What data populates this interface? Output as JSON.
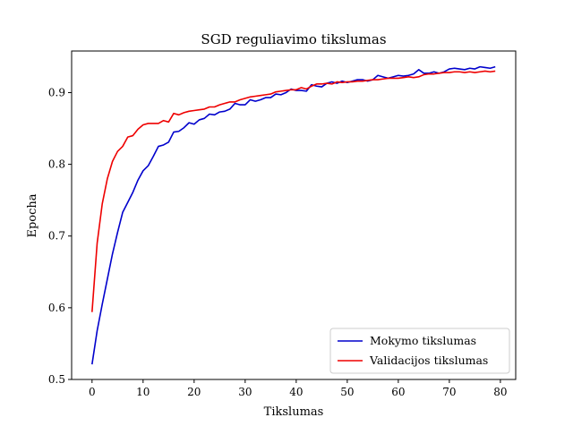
{
  "chart_data": {
    "type": "line",
    "title": "SGD reguliavimo tikslumas",
    "xlabel": "Tikslumas",
    "ylabel": "Epocha",
    "xlim": [
      -4,
      83
    ],
    "ylim": [
      0.5,
      0.958
    ],
    "xticks": [
      0,
      10,
      20,
      30,
      40,
      50,
      60,
      70,
      80
    ],
    "yticks": [
      0.5,
      0.6,
      0.7,
      0.8,
      0.9
    ],
    "grid": false,
    "legend_position": "lower-right",
    "series": [
      {
        "name": "Mokymo tikslumas",
        "color": "#0000cc",
        "x": [
          0,
          1,
          2,
          3,
          4,
          5,
          6,
          7,
          8,
          9,
          10,
          11,
          12,
          13,
          14,
          15,
          16,
          17,
          18,
          19,
          20,
          21,
          22,
          23,
          24,
          25,
          26,
          27,
          28,
          29,
          30,
          31,
          32,
          33,
          34,
          35,
          36,
          37,
          38,
          39,
          40,
          41,
          42,
          43,
          44,
          45,
          46,
          47,
          48,
          49,
          50,
          51,
          52,
          53,
          54,
          55,
          56,
          57,
          58,
          59,
          60,
          61,
          62,
          63,
          64,
          65,
          66,
          67,
          68,
          69,
          70,
          71,
          72,
          73,
          74,
          75,
          76,
          77,
          78,
          79
        ],
        "values": [
          0.521,
          0.568,
          0.605,
          0.64,
          0.675,
          0.705,
          0.733,
          0.747,
          0.761,
          0.778,
          0.791,
          0.798,
          0.811,
          0.825,
          0.827,
          0.831,
          0.845,
          0.846,
          0.851,
          0.858,
          0.856,
          0.862,
          0.864,
          0.87,
          0.869,
          0.873,
          0.874,
          0.877,
          0.885,
          0.883,
          0.883,
          0.89,
          0.888,
          0.89,
          0.893,
          0.893,
          0.898,
          0.897,
          0.9,
          0.905,
          0.903,
          0.903,
          0.902,
          0.911,
          0.909,
          0.908,
          0.913,
          0.915,
          0.913,
          0.916,
          0.914,
          0.916,
          0.918,
          0.918,
          0.916,
          0.918,
          0.924,
          0.922,
          0.92,
          0.922,
          0.924,
          0.923,
          0.924,
          0.926,
          0.932,
          0.927,
          0.927,
          0.929,
          0.927,
          0.929,
          0.933,
          0.934,
          0.933,
          0.932,
          0.934,
          0.933,
          0.936,
          0.935,
          0.934,
          0.936
        ]
      },
      {
        "name": "Validacijos tikslumas",
        "color": "#ee0000",
        "x": [
          0,
          1,
          2,
          3,
          4,
          5,
          6,
          7,
          8,
          9,
          10,
          11,
          12,
          13,
          14,
          15,
          16,
          17,
          18,
          19,
          20,
          21,
          22,
          23,
          24,
          25,
          26,
          27,
          28,
          29,
          30,
          31,
          32,
          33,
          34,
          35,
          36,
          37,
          38,
          39,
          40,
          41,
          42,
          43,
          44,
          45,
          46,
          47,
          48,
          49,
          50,
          51,
          52,
          53,
          54,
          55,
          56,
          57,
          58,
          59,
          60,
          61,
          62,
          63,
          64,
          65,
          66,
          67,
          68,
          69,
          70,
          71,
          72,
          73,
          74,
          75,
          76,
          77,
          78,
          79
        ],
        "values": [
          0.594,
          0.69,
          0.745,
          0.78,
          0.804,
          0.818,
          0.825,
          0.838,
          0.84,
          0.849,
          0.855,
          0.857,
          0.857,
          0.857,
          0.861,
          0.859,
          0.871,
          0.869,
          0.872,
          0.874,
          0.875,
          0.876,
          0.877,
          0.88,
          0.88,
          0.883,
          0.885,
          0.887,
          0.887,
          0.89,
          0.892,
          0.894,
          0.895,
          0.896,
          0.897,
          0.898,
          0.901,
          0.902,
          0.903,
          0.904,
          0.904,
          0.907,
          0.905,
          0.909,
          0.912,
          0.912,
          0.913,
          0.912,
          0.915,
          0.914,
          0.915,
          0.915,
          0.916,
          0.916,
          0.917,
          0.918,
          0.918,
          0.919,
          0.92,
          0.92,
          0.92,
          0.921,
          0.922,
          0.921,
          0.922,
          0.925,
          0.926,
          0.926,
          0.927,
          0.928,
          0.928,
          0.929,
          0.929,
          0.928,
          0.929,
          0.928,
          0.929,
          0.93,
          0.929,
          0.93
        ]
      }
    ]
  }
}
